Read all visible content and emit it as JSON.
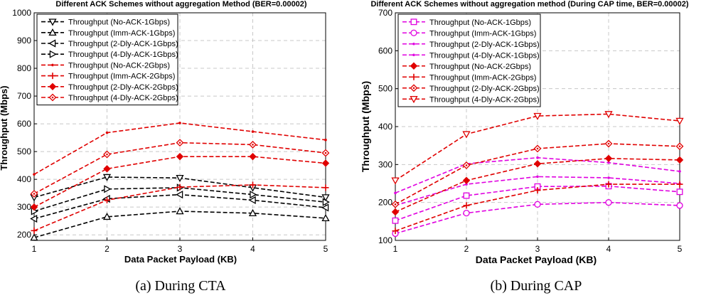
{
  "chart_data": [
    {
      "type": "line",
      "title": "Different ACK Schemes without aggregation Method (BER=0.00002)",
      "caption": "(a) During CTA",
      "xlabel": "Data Packet Payload (KB)",
      "ylabel": "Throughput (Mbps)",
      "x": [
        1,
        2,
        3,
        4,
        5
      ],
      "xlim": [
        1,
        5
      ],
      "ylim": [
        180,
        1000
      ],
      "yticks": [
        200,
        300,
        400,
        500,
        600,
        700,
        800,
        900,
        1000
      ],
      "grid": true,
      "legend_position": "top-left",
      "series": [
        {
          "name": "Throughput (No-ACK-1Gbps)",
          "color": "#000000",
          "marker": "tri-down",
          "values": [
            335,
            408,
            405,
            370,
            335
          ]
        },
        {
          "name": "Throughput (Imm-ACK-1Gbps)",
          "color": "#000000",
          "marker": "tri-up",
          "values": [
            190,
            265,
            285,
            278,
            260
          ]
        },
        {
          "name": "Throughput (2-Dly-ACK-1Gbps)",
          "color": "#000000",
          "marker": "tri-left",
          "values": [
            258,
            330,
            345,
            325,
            298
          ]
        },
        {
          "name": "Throughput (4-Dly-ACK-1Gbps)",
          "color": "#000000",
          "marker": "tri-right",
          "values": [
            285,
            365,
            370,
            345,
            318
          ]
        },
        {
          "name": "Throughput (No-ACK-2Gbps)",
          "color": "#e00000",
          "marker": "dot",
          "values": [
            418,
            568,
            603,
            572,
            542
          ]
        },
        {
          "name": "Throughput (Imm-ACK-2Gbps)",
          "color": "#e00000",
          "marker": "plus",
          "values": [
            215,
            325,
            372,
            380,
            370
          ]
        },
        {
          "name": "Throughput (2-Dly-ACK-2Gbps)",
          "color": "#e00000",
          "marker": "diamond-filled",
          "values": [
            300,
            438,
            482,
            482,
            458
          ]
        },
        {
          "name": "Throughput (4-Dly-ACK-2Gbps)",
          "color": "#e00000",
          "marker": "diamond",
          "values": [
            348,
            490,
            532,
            525,
            495
          ]
        }
      ]
    },
    {
      "type": "line",
      "title": "Different ACK Schemes without aggregation method (During CAP time, BER=0.00002)",
      "caption": "(b) During CAP",
      "xlabel": "Data Packet Payload (KB)",
      "ylabel": "Throughput (Mbps)",
      "x": [
        1,
        2,
        3,
        4,
        5
      ],
      "xlim": [
        1,
        5
      ],
      "ylim": [
        100,
        700
      ],
      "yticks": [
        100,
        200,
        300,
        400,
        500,
        600,
        700
      ],
      "grid": true,
      "legend_position": "top-left",
      "series": [
        {
          "name": "Throughput (No-ACK-1Gbps)",
          "color": "#e000e0",
          "marker": "square",
          "values": [
            152,
            218,
            242,
            243,
            228
          ]
        },
        {
          "name": "Throughput (Imm-ACK-1Gbps)",
          "color": "#e000e0",
          "marker": "circle",
          "values": [
            118,
            172,
            195,
            200,
            192
          ]
        },
        {
          "name": "Throughput (2-Dly-ACK-1Gbps)",
          "color": "#e000e0",
          "marker": "dot",
          "values": [
            192,
            248,
            268,
            265,
            250
          ]
        },
        {
          "name": "Throughput (4-Dly-ACK-1Gbps)",
          "color": "#e000e0",
          "marker": "dot",
          "values": [
            225,
            302,
            318,
            305,
            282
          ]
        },
        {
          "name": "Throughput (No-ACK-2Gbps)",
          "color": "#e00000",
          "marker": "diamond-filled",
          "values": [
            175,
            258,
            302,
            316,
            312
          ]
        },
        {
          "name": "Throughput (Imm-ACK-2Gbps)",
          "color": "#e00000",
          "marker": "plus",
          "values": [
            125,
            192,
            232,
            248,
            248
          ]
        },
        {
          "name": "Throughput (2-Dly-ACK-2Gbps)",
          "color": "#e00000",
          "marker": "diamond",
          "values": [
            195,
            298,
            342,
            355,
            348
          ]
        },
        {
          "name": "Throughput (4-Dly-ACK-2Gbps)",
          "color": "#e00000",
          "marker": "tri-down",
          "values": [
            258,
            380,
            428,
            433,
            415
          ]
        }
      ]
    }
  ]
}
